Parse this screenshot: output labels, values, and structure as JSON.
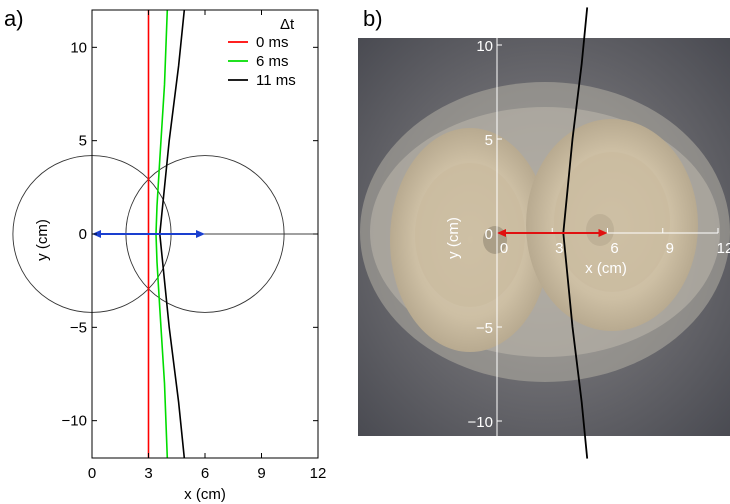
{
  "chart_data": [
    {
      "panel_label": "a)",
      "type": "line",
      "xlabel": "x (cm)",
      "ylabel": "y (cm)",
      "xlim": [
        0,
        12
      ],
      "ylim": [
        -12,
        12
      ],
      "xticks": [
        0,
        3,
        6,
        9,
        12
      ],
      "yticks": [
        -10,
        -5,
        0,
        5,
        10
      ],
      "xtick_labels": [
        "0",
        "3",
        "6",
        "9",
        "12"
      ],
      "ytick_labels": [
        "−10",
        "−5",
        "0",
        "5",
        "10"
      ],
      "legend_title": "Δt",
      "legend_position": "top-right",
      "series": [
        {
          "name": "0 ms",
          "color": "#ff0000",
          "points": [
            [
              3.0,
              -12
            ],
            [
              3.0,
              12
            ]
          ]
        },
        {
          "name": "6 ms",
          "color": "#00dd00",
          "points": [
            [
              4.0,
              -12
            ],
            [
              3.85,
              -8
            ],
            [
              3.6,
              -4
            ],
            [
              3.45,
              -1.5
            ],
            [
              3.4,
              0
            ],
            [
              3.45,
              1.5
            ],
            [
              3.6,
              4
            ],
            [
              3.85,
              8
            ],
            [
              4.0,
              12
            ]
          ]
        },
        {
          "name": "11 ms",
          "color": "#000000",
          "points": [
            [
              4.9,
              -12
            ],
            [
              4.6,
              -9
            ],
            [
              4.1,
              -5
            ],
            [
              3.85,
              -2.5
            ],
            [
              3.6,
              0
            ],
            [
              3.85,
              2.5
            ],
            [
              4.1,
              5
            ],
            [
              4.6,
              9
            ],
            [
              4.9,
              12
            ]
          ]
        }
      ],
      "circles": [
        {
          "center": [
            0,
            0
          ],
          "radius": 4.2
        },
        {
          "center": [
            6,
            0
          ],
          "radius": 4.2
        }
      ],
      "arrow": {
        "from": [
          0,
          0
        ],
        "to": [
          6,
          0
        ],
        "color": "#1a3fcf",
        "double_headed": true
      }
    },
    {
      "panel_label": "b)",
      "type": "photo-with-overlay",
      "xlabel": "x (cm)",
      "ylabel": "y (cm)",
      "xticks": [
        0,
        3,
        6,
        9,
        12
      ],
      "yticks": [
        -10,
        -5,
        0,
        5,
        10
      ],
      "xtick_labels": [
        "0",
        "3",
        "6",
        "9",
        "12"
      ],
      "ytick_labels": [
        "−10",
        "−5",
        "0",
        "5",
        "10"
      ],
      "curve": {
        "color": "#000000",
        "points": [
          [
            4.9,
            -12
          ],
          [
            4.6,
            -9
          ],
          [
            4.1,
            -5
          ],
          [
            3.85,
            -2.5
          ],
          [
            3.6,
            0
          ],
          [
            3.85,
            2.5
          ],
          [
            4.1,
            5
          ],
          [
            4.6,
            9
          ],
          [
            4.9,
            12
          ]
        ]
      },
      "arrow": {
        "from": [
          0,
          0
        ],
        "to": [
          6,
          0
        ],
        "color": "#e01010",
        "double_headed": true
      }
    }
  ]
}
